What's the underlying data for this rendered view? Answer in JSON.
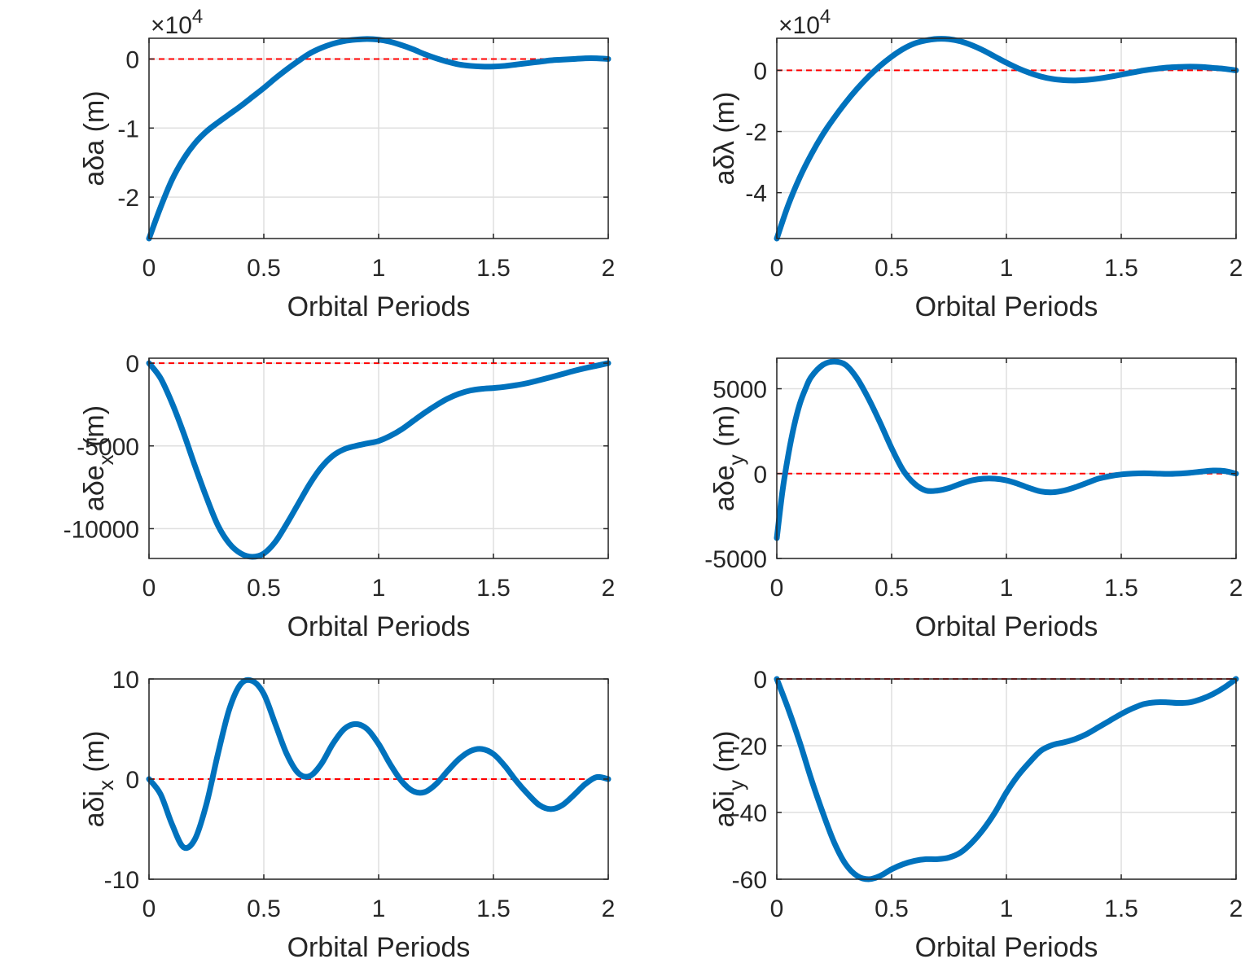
{
  "figure": {
    "background": "#ffffff",
    "line_color": "#0072BD",
    "zero_line_color": "#ff0000",
    "axis_color": "#262626",
    "grid_color": "#dfdfdf"
  },
  "chart_data": [
    {
      "id": "ada",
      "type": "line",
      "xlabel": "Orbital Periods",
      "ylabel": "aδa (m)",
      "ylabel_main": "aδa",
      "ylabel_sub": "",
      "ylabel_unit": " (m)",
      "exponent_label": "×10⁴",
      "exponent_base": "×10",
      "exponent_power": "4",
      "xlim": [
        0,
        2
      ],
      "ylim": [
        -2.6,
        0.3
      ],
      "xticks": [
        0,
        0.5,
        1,
        1.5,
        2
      ],
      "xtick_labels": [
        "0",
        "0.5",
        "1",
        "1.5",
        "2"
      ],
      "yticks": [
        -2,
        -1,
        0
      ],
      "ytick_labels": [
        "-2",
        "-1",
        "0"
      ],
      "grid": true,
      "zero_line": true,
      "series": [
        {
          "x": [
            0,
            0.05,
            0.1,
            0.15,
            0.2,
            0.25,
            0.3,
            0.35,
            0.4,
            0.45,
            0.5,
            0.55,
            0.6,
            0.65,
            0.7,
            0.75,
            0.8,
            0.85,
            0.9,
            0.95,
            1.0,
            1.05,
            1.1,
            1.15,
            1.2,
            1.25,
            1.3,
            1.35,
            1.4,
            1.45,
            1.5,
            1.55,
            1.6,
            1.65,
            1.7,
            1.75,
            1.8,
            1.85,
            1.9,
            1.95,
            2.0
          ],
          "y": [
            -2.6,
            -2.15,
            -1.75,
            -1.45,
            -1.22,
            -1.05,
            -0.92,
            -0.8,
            -0.68,
            -0.55,
            -0.42,
            -0.28,
            -0.15,
            -0.03,
            0.08,
            0.16,
            0.22,
            0.26,
            0.28,
            0.29,
            0.28,
            0.25,
            0.2,
            0.14,
            0.07,
            0.01,
            -0.04,
            -0.08,
            -0.1,
            -0.11,
            -0.11,
            -0.1,
            -0.08,
            -0.06,
            -0.04,
            -0.02,
            -0.01,
            0.0,
            0.01,
            0.01,
            0.0
          ]
        }
      ]
    },
    {
      "id": "adl",
      "type": "line",
      "xlabel": "Orbital Periods",
      "ylabel": "aδλ (m)",
      "ylabel_main": "aδλ",
      "ylabel_sub": "",
      "ylabel_unit": " (m)",
      "exponent_label": "×10⁴",
      "exponent_base": "×10",
      "exponent_power": "4",
      "xlim": [
        0,
        2
      ],
      "ylim": [
        -5.5,
        1.05
      ],
      "xticks": [
        0,
        0.5,
        1,
        1.5,
        2
      ],
      "xtick_labels": [
        "0",
        "0.5",
        "1",
        "1.5",
        "2"
      ],
      "yticks": [
        -4,
        -2,
        0
      ],
      "ytick_labels": [
        "-4",
        "-2",
        "0"
      ],
      "grid": true,
      "zero_line": true,
      "series": [
        {
          "x": [
            0,
            0.05,
            0.1,
            0.15,
            0.2,
            0.25,
            0.3,
            0.35,
            0.4,
            0.45,
            0.5,
            0.55,
            0.6,
            0.65,
            0.7,
            0.75,
            0.8,
            0.85,
            0.9,
            0.95,
            1.0,
            1.05,
            1.1,
            1.15,
            1.2,
            1.25,
            1.3,
            1.35,
            1.4,
            1.45,
            1.5,
            1.55,
            1.6,
            1.65,
            1.7,
            1.75,
            1.8,
            1.85,
            1.9,
            1.95,
            2.0
          ],
          "y": [
            -5.5,
            -4.4,
            -3.5,
            -2.75,
            -2.1,
            -1.55,
            -1.05,
            -0.6,
            -0.2,
            0.15,
            0.45,
            0.7,
            0.88,
            0.98,
            1.03,
            1.02,
            0.95,
            0.82,
            0.65,
            0.45,
            0.25,
            0.07,
            -0.08,
            -0.2,
            -0.28,
            -0.32,
            -0.33,
            -0.31,
            -0.27,
            -0.21,
            -0.14,
            -0.07,
            0.0,
            0.05,
            0.09,
            0.11,
            0.12,
            0.11,
            0.08,
            0.05,
            0.0
          ]
        }
      ]
    },
    {
      "id": "adex",
      "type": "line",
      "xlabel": "Orbital Periods",
      "ylabel": "aδe_x (m)",
      "ylabel_main": "aδe",
      "ylabel_sub": "x",
      "ylabel_unit": " (m)",
      "xlim": [
        0,
        2
      ],
      "ylim": [
        -11800,
        300
      ],
      "xticks": [
        0,
        0.5,
        1,
        1.5,
        2
      ],
      "xtick_labels": [
        "0",
        "0.5",
        "1",
        "1.5",
        "2"
      ],
      "yticks": [
        -10000,
        -5000,
        0
      ],
      "ytick_labels": [
        "-10000",
        "-5000",
        "0"
      ],
      "grid": true,
      "zero_line": true,
      "series": [
        {
          "x": [
            0,
            0.05,
            0.1,
            0.15,
            0.2,
            0.25,
            0.3,
            0.35,
            0.4,
            0.45,
            0.5,
            0.55,
            0.6,
            0.65,
            0.7,
            0.75,
            0.8,
            0.85,
            0.9,
            0.95,
            1.0,
            1.05,
            1.1,
            1.15,
            1.2,
            1.25,
            1.3,
            1.35,
            1.4,
            1.45,
            1.5,
            1.55,
            1.6,
            1.65,
            1.7,
            1.75,
            1.8,
            1.85,
            1.9,
            1.95,
            2.0
          ],
          "y": [
            0,
            -900,
            -2400,
            -4200,
            -6200,
            -8100,
            -9800,
            -10900,
            -11500,
            -11700,
            -11500,
            -10800,
            -9700,
            -8500,
            -7300,
            -6300,
            -5600,
            -5200,
            -5000,
            -4850,
            -4700,
            -4400,
            -4000,
            -3500,
            -3000,
            -2550,
            -2150,
            -1850,
            -1650,
            -1550,
            -1500,
            -1430,
            -1330,
            -1200,
            -1030,
            -850,
            -660,
            -470,
            -300,
            -150,
            0
          ]
        }
      ]
    },
    {
      "id": "adey",
      "type": "line",
      "xlabel": "Orbital Periods",
      "ylabel": "aδe_y (m)",
      "ylabel_main": "aδe",
      "ylabel_sub": "y",
      "ylabel_unit": " (m)",
      "xlim": [
        0,
        2
      ],
      "ylim": [
        -5000,
        6800
      ],
      "xticks": [
        0,
        0.5,
        1,
        1.5,
        2
      ],
      "xtick_labels": [
        "0",
        "0.5",
        "1",
        "1.5",
        "2"
      ],
      "yticks": [
        -5000,
        0,
        5000
      ],
      "ytick_labels": [
        "-5000",
        "0",
        "5000"
      ],
      "grid": true,
      "zero_line": true,
      "series": [
        {
          "x": [
            0,
            0.025,
            0.05,
            0.075,
            0.1,
            0.125,
            0.15,
            0.2,
            0.25,
            0.3,
            0.35,
            0.4,
            0.45,
            0.5,
            0.55,
            0.6,
            0.65,
            0.7,
            0.75,
            0.8,
            0.85,
            0.9,
            0.95,
            1.0,
            1.05,
            1.1,
            1.15,
            1.2,
            1.25,
            1.3,
            1.35,
            1.4,
            1.45,
            1.5,
            1.55,
            1.6,
            1.65,
            1.7,
            1.75,
            1.8,
            1.85,
            1.9,
            1.95,
            2.0
          ],
          "y": [
            -3800,
            -1000,
            1100,
            2800,
            4100,
            5000,
            5700,
            6400,
            6600,
            6400,
            5600,
            4400,
            3000,
            1500,
            200,
            -600,
            -1000,
            -1000,
            -850,
            -600,
            -400,
            -300,
            -300,
            -400,
            -600,
            -850,
            -1050,
            -1100,
            -1000,
            -800,
            -550,
            -300,
            -150,
            -50,
            0,
            20,
            0,
            -20,
            0,
            50,
            120,
            180,
            150,
            0
          ]
        }
      ]
    },
    {
      "id": "adix",
      "type": "line",
      "xlabel": "Orbital Periods",
      "ylabel": "aδi_x (m)",
      "ylabel_main": "aδi",
      "ylabel_sub": "x",
      "ylabel_unit": " (m)",
      "xlim": [
        0,
        2
      ],
      "ylim": [
        -10,
        10
      ],
      "xticks": [
        0,
        0.5,
        1,
        1.5,
        2
      ],
      "xtick_labels": [
        "0",
        "0.5",
        "1",
        "1.5",
        "2"
      ],
      "yticks": [
        -10,
        0,
        10
      ],
      "ytick_labels": [
        "-10",
        "0",
        "10"
      ],
      "grid": true,
      "zero_line": true,
      "series": [
        {
          "x": [
            0,
            0.05,
            0.1,
            0.15,
            0.2,
            0.25,
            0.3,
            0.35,
            0.4,
            0.45,
            0.5,
            0.55,
            0.6,
            0.65,
            0.7,
            0.75,
            0.8,
            0.85,
            0.9,
            0.95,
            1.0,
            1.05,
            1.1,
            1.15,
            1.2,
            1.25,
            1.3,
            1.35,
            1.4,
            1.45,
            1.5,
            1.55,
            1.6,
            1.65,
            1.7,
            1.75,
            1.8,
            1.85,
            1.9,
            1.95,
            2.0
          ],
          "y": [
            0,
            -1.5,
            -4.5,
            -6.8,
            -6.0,
            -2.5,
            2.5,
            7.0,
            9.5,
            9.8,
            8.5,
            5.5,
            2.5,
            0.6,
            0.3,
            1.5,
            3.5,
            5.0,
            5.5,
            5.0,
            3.5,
            1.5,
            -0.2,
            -1.2,
            -1.3,
            -0.5,
            0.8,
            2.0,
            2.8,
            3.0,
            2.5,
            1.3,
            -0.2,
            -1.5,
            -2.6,
            -3.0,
            -2.6,
            -1.6,
            -0.5,
            0.2,
            0.0
          ]
        }
      ]
    },
    {
      "id": "adiy",
      "type": "line",
      "xlabel": "Orbital Periods",
      "ylabel": "aδi_y (m)",
      "ylabel_main": "aδi",
      "ylabel_sub": "y",
      "ylabel_unit": " (m)",
      "xlim": [
        0,
        2
      ],
      "ylim": [
        -60,
        0
      ],
      "xticks": [
        0,
        0.5,
        1,
        1.5,
        2
      ],
      "xtick_labels": [
        "0",
        "0.5",
        "1",
        "1.5",
        "2"
      ],
      "yticks": [
        -60,
        -40,
        -20,
        0
      ],
      "ytick_labels": [
        "-60",
        "-40",
        "-20",
        "0"
      ],
      "grid": true,
      "zero_line": true,
      "series": [
        {
          "x": [
            0,
            0.05,
            0.1,
            0.15,
            0.2,
            0.25,
            0.3,
            0.35,
            0.4,
            0.45,
            0.5,
            0.55,
            0.6,
            0.65,
            0.7,
            0.75,
            0.8,
            0.85,
            0.9,
            0.95,
            1.0,
            1.05,
            1.1,
            1.15,
            1.2,
            1.25,
            1.3,
            1.35,
            1.4,
            1.45,
            1.5,
            1.55,
            1.6,
            1.65,
            1.7,
            1.75,
            1.8,
            1.85,
            1.9,
            1.95,
            2.0
          ],
          "y": [
            0,
            -9,
            -19,
            -30,
            -40,
            -49,
            -55.5,
            -59,
            -60,
            -59,
            -57,
            -55.5,
            -54.5,
            -54,
            -54,
            -53.5,
            -52,
            -49,
            -45,
            -40,
            -34,
            -29,
            -25,
            -21.5,
            -19.8,
            -19,
            -18,
            -16.5,
            -14.5,
            -12.5,
            -10.5,
            -8.8,
            -7.5,
            -7,
            -7,
            -7.2,
            -7,
            -6,
            -4.5,
            -2.5,
            0
          ]
        }
      ]
    }
  ]
}
